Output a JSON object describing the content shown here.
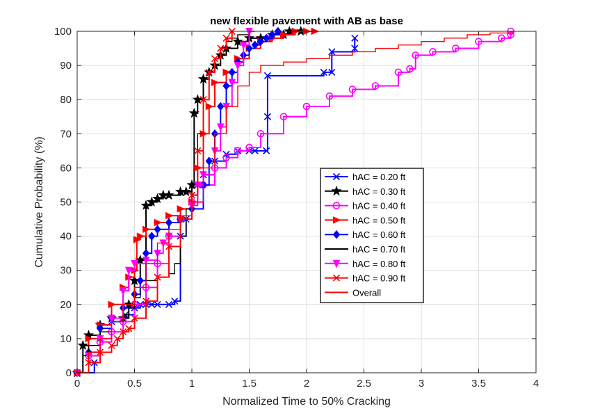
{
  "chart_data": {
    "type": "line",
    "title": "new flexible pavement with AB as base",
    "xlabel": "Normalized Time to 50% Cracking",
    "ylabel": "Cumulative Probability (%)",
    "xlim": [
      0,
      4
    ],
    "ylim": [
      0,
      100
    ],
    "xticks": [
      "0",
      "0.5",
      "1",
      "1.5",
      "2",
      "2.5",
      "3",
      "3.5",
      "4"
    ],
    "yticks": [
      "0",
      "10",
      "20",
      "30",
      "40",
      "50",
      "60",
      "70",
      "80",
      "90",
      "100"
    ],
    "grid": true,
    "legend_position": "center-right",
    "series": [
      {
        "name": "hAC = 0.20 ft",
        "color": "#0000ff",
        "marker": "x",
        "x": [
          0,
          0.15,
          0.2,
          0.3,
          0.42,
          0.5,
          0.55,
          0.6,
          0.65,
          0.7,
          0.8,
          0.85,
          0.9,
          0.95,
          1.0,
          1.05,
          1.1,
          1.2,
          1.3,
          1.4,
          1.5,
          1.55,
          1.65,
          1.66,
          1.66,
          2.15,
          2.22,
          2.22,
          2.42,
          2.42
        ],
        "y": [
          0,
          3,
          10,
          15,
          17,
          19,
          20,
          20,
          20,
          20,
          20,
          21,
          40,
          45,
          52,
          55,
          58,
          62,
          64,
          65,
          65,
          65,
          65,
          75,
          87,
          88,
          88,
          94,
          95,
          98
        ]
      },
      {
        "name": "hAC = 0.30 ft",
        "color": "#000000",
        "marker": "star",
        "x": [
          0,
          0.05,
          0.1,
          0.2,
          0.3,
          0.4,
          0.45,
          0.5,
          0.55,
          0.6,
          0.65,
          0.7,
          0.75,
          0.8,
          0.9,
          0.95,
          1.0,
          1.02,
          1.05,
          1.1,
          1.15,
          1.2,
          1.25,
          1.3,
          1.4,
          1.5,
          1.6,
          1.7,
          1.8,
          1.85,
          1.95
        ],
        "y": [
          0,
          8,
          11,
          14,
          16,
          16,
          20,
          27,
          33,
          49,
          50,
          51,
          52,
          52,
          53,
          53,
          55,
          76,
          80,
          86,
          88,
          90,
          93,
          95,
          97,
          98,
          98,
          99,
          99,
          100,
          100
        ]
      },
      {
        "name": "hAC = 0.40 ft",
        "color": "#ff00ff",
        "marker": "o",
        "x": [
          0,
          0.1,
          0.2,
          0.3,
          0.4,
          0.5,
          0.6,
          0.7,
          0.8,
          0.9,
          1.0,
          1.1,
          1.2,
          1.3,
          1.4,
          1.5,
          1.6,
          1.8,
          2.0,
          2.2,
          2.4,
          2.6,
          2.8,
          2.9,
          2.95,
          3.1,
          3.3,
          3.5,
          3.7,
          3.78,
          3.78
        ],
        "y": [
          0,
          5,
          9,
          12,
          15,
          20,
          25,
          32,
          40,
          45,
          50,
          55,
          60,
          63,
          65,
          66,
          70,
          75,
          78,
          81,
          83,
          84,
          88,
          89,
          93,
          94,
          95,
          97,
          98,
          99,
          100
        ]
      },
      {
        "name": "hAC = 0.50 ft",
        "color": "#ff0000",
        "marker": "triangle-right",
        "x": [
          0,
          0.1,
          0.2,
          0.3,
          0.4,
          0.45,
          0.5,
          0.52,
          0.55,
          0.6,
          0.7,
          0.8,
          0.9,
          1.0,
          1.05,
          1.1,
          1.15,
          1.2,
          1.3,
          1.4,
          1.5,
          1.6,
          1.7,
          1.8,
          1.9,
          2.0,
          2.07
        ],
        "y": [
          0,
          10,
          14,
          20,
          25,
          28,
          30,
          39,
          40,
          42,
          44,
          46,
          48,
          50,
          60,
          70,
          78,
          85,
          88,
          92,
          95,
          97,
          98,
          99,
          100,
          100,
          100
        ]
      },
      {
        "name": "hAC = 0.60 ft",
        "color": "#0000ff",
        "marker": "diamond",
        "x": [
          0,
          0.1,
          0.2,
          0.3,
          0.4,
          0.5,
          0.55,
          0.6,
          0.65,
          0.7,
          0.8,
          0.9,
          1.0,
          1.1,
          1.15,
          1.2,
          1.25,
          1.3,
          1.35,
          1.4,
          1.45,
          1.5,
          1.55,
          1.6,
          1.65,
          1.7,
          1.75
        ],
        "y": [
          0,
          6,
          13,
          16,
          19,
          23,
          27,
          35,
          40,
          42,
          44,
          45,
          48,
          55,
          62,
          70,
          78,
          84,
          88,
          91,
          93,
          95,
          96,
          97,
          98,
          99,
          100
        ]
      },
      {
        "name": "hAC = 0.70 ft",
        "color": "#000000",
        "marker": "none",
        "x": [
          0,
          0.05,
          0.1,
          0.2,
          0.3,
          0.4,
          0.45,
          0.5,
          0.55,
          0.6,
          0.7,
          0.8,
          0.85,
          0.9,
          0.95,
          1.0,
          1.05,
          1.1,
          1.15,
          1.2,
          1.25,
          1.3,
          1.35,
          1.4,
          1.5,
          1.55
        ],
        "y": [
          0,
          5,
          8,
          12,
          15,
          17,
          19,
          22,
          25,
          27,
          28,
          29,
          32,
          40,
          48,
          55,
          70,
          80,
          88,
          92,
          95,
          97,
          98,
          99,
          100,
          100
        ]
      },
      {
        "name": "hAC = 0.80 ft",
        "color": "#ff00ff",
        "marker": "triangle-down",
        "x": [
          0,
          0.1,
          0.2,
          0.3,
          0.4,
          0.45,
          0.5,
          0.6,
          0.7,
          0.75,
          0.8,
          0.9,
          1.0,
          1.05,
          1.1,
          1.2,
          1.25,
          1.3,
          1.35,
          1.4,
          1.45,
          1.5
        ],
        "y": [
          0,
          5,
          10,
          16,
          24,
          30,
          32,
          33,
          35,
          38,
          40,
          45,
          49,
          55,
          58,
          65,
          72,
          78,
          85,
          90,
          96,
          100
        ]
      },
      {
        "name": "hAC = 0.90 ft",
        "color": "#ff0000",
        "marker": "x",
        "x": [
          0,
          0.1,
          0.2,
          0.3,
          0.35,
          0.4,
          0.45,
          0.5,
          0.6,
          0.7,
          0.8,
          0.9,
          1.0,
          1.05,
          1.1,
          1.15,
          1.2,
          1.25,
          1.3,
          1.35
        ],
        "y": [
          0,
          3,
          6,
          8,
          10,
          12,
          13,
          16,
          21,
          28,
          37,
          45,
          52,
          65,
          80,
          88,
          92,
          95,
          98,
          100
        ]
      },
      {
        "name": "Overall",
        "color": "#ff0000",
        "marker": "none",
        "x": [
          0,
          0.1,
          0.2,
          0.3,
          0.4,
          0.5,
          0.6,
          0.7,
          0.8,
          0.9,
          1.0,
          1.1,
          1.2,
          1.3,
          1.4,
          1.5,
          1.6,
          1.8,
          2.0,
          2.2,
          2.4,
          2.6,
          2.8,
          3.0,
          3.2,
          3.4,
          3.6,
          3.8
        ],
        "y": [
          0,
          6,
          10,
          15,
          20,
          25,
          32,
          38,
          42,
          46,
          50,
          60,
          70,
          78,
          84,
          88,
          90,
          91,
          92,
          93,
          94,
          95,
          96,
          97,
          98,
          99,
          99.5,
          100
        ]
      }
    ]
  }
}
